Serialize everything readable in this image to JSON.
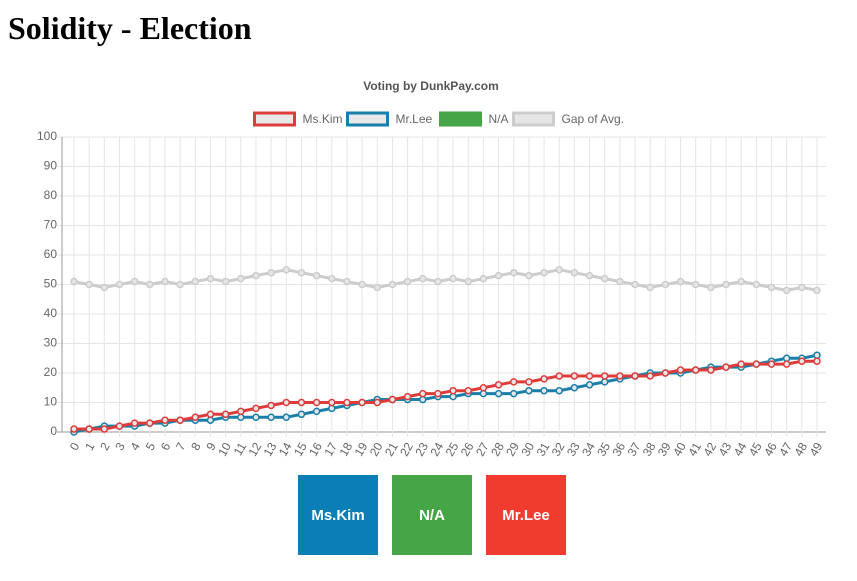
{
  "page": {
    "title": "Solidity - Election"
  },
  "chart_data": {
    "type": "line",
    "title": "Voting by DunkPay.com",
    "categories": [
      "0",
      "1",
      "2",
      "3",
      "4",
      "5",
      "6",
      "7",
      "8",
      "9",
      "10",
      "11",
      "12",
      "13",
      "14",
      "15",
      "16",
      "17",
      "18",
      "19",
      "20",
      "21",
      "22",
      "23",
      "24",
      "25",
      "26",
      "27",
      "28",
      "29",
      "30",
      "31",
      "32",
      "33",
      "34",
      "35",
      "36",
      "37",
      "38",
      "39",
      "40",
      "41",
      "42",
      "43",
      "44",
      "45",
      "46",
      "47",
      "48",
      "49"
    ],
    "series": [
      {
        "name": "Ms.Kim",
        "color": "#dd3c3a",
        "values": [
          1,
          1,
          1,
          2,
          3,
          3,
          4,
          4,
          5,
          6,
          6,
          7,
          8,
          9,
          10,
          10,
          10,
          10,
          10,
          10,
          10,
          11,
          12,
          13,
          13,
          14,
          14,
          15,
          16,
          17,
          17,
          18,
          19,
          19,
          19,
          19,
          19,
          19,
          19,
          20,
          21,
          21,
          21,
          22,
          23,
          23,
          23,
          23,
          24,
          24
        ]
      },
      {
        "name": "Mr.Lee",
        "color": "#1a7fa8",
        "values": [
          0,
          1,
          2,
          2,
          2,
          3,
          3,
          4,
          4,
          4,
          5,
          5,
          5,
          5,
          5,
          6,
          7,
          8,
          9,
          10,
          11,
          11,
          11,
          11,
          12,
          12,
          13,
          13,
          13,
          13,
          14,
          14,
          14,
          15,
          16,
          17,
          18,
          19,
          20,
          20,
          20,
          21,
          22,
          22,
          22,
          23,
          24,
          25,
          25,
          26
        ]
      },
      {
        "name": "N/A",
        "color": "#46a546"
      },
      {
        "name": "Gap of Avg.",
        "color": "#cccccc",
        "values": [
          51,
          50,
          49,
          50,
          51,
          50,
          51,
          50,
          51,
          52,
          51,
          52,
          53,
          54,
          55,
          54,
          53,
          52,
          51,
          50,
          49,
          50,
          51,
          52,
          51,
          52,
          51,
          52,
          53,
          54,
          53,
          54,
          55,
          54,
          53,
          52,
          51,
          50,
          49,
          50,
          51,
          50,
          49,
          50,
          51,
          50,
          49,
          48,
          49,
          48
        ]
      }
    ],
    "ylim": [
      0,
      100
    ],
    "yticks": [
      0,
      10,
      20,
      30,
      40,
      50,
      60,
      70,
      80,
      90,
      100
    ],
    "grid": true,
    "legend": "top"
  },
  "buttons": [
    {
      "label": "Ms.Kim",
      "color": "#0a7fb5"
    },
    {
      "label": "N/A",
      "color": "#46a546"
    },
    {
      "label": "Mr.Lee",
      "color": "#f03c2f"
    }
  ]
}
